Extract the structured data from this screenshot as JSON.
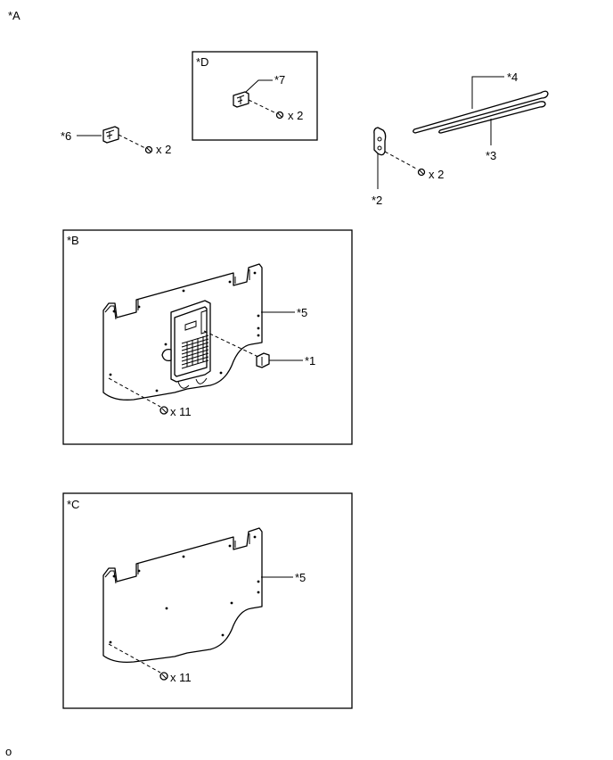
{
  "figure": {
    "view_label": "*A",
    "footer_code": "o"
  },
  "panels": {
    "d": {
      "label": "*D"
    },
    "b": {
      "label": "*B"
    },
    "c": {
      "label": "*C"
    }
  },
  "callouts": {
    "p1": "*1",
    "p2": "*2",
    "p3": "*3",
    "p4": "*4",
    "p5_b": "*5",
    "p5_c": "*5",
    "p6": "*6",
    "p7": "*7"
  },
  "quantities": {
    "screws_part6": "x 2",
    "screws_part7": "x 2",
    "screws_part2": "x 2",
    "clips_panel_b": "x 11",
    "clips_panel_c": "x 11"
  }
}
